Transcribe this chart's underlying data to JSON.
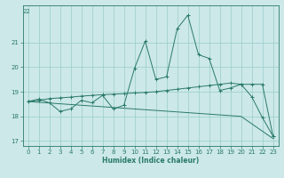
{
  "xlabel": "Humidex (Indice chaleur)",
  "x": [
    0,
    1,
    2,
    3,
    4,
    5,
    6,
    7,
    8,
    9,
    10,
    11,
    12,
    13,
    14,
    15,
    16,
    17,
    18,
    19,
    20,
    21,
    22,
    23
  ],
  "line1": [
    18.6,
    18.7,
    18.55,
    18.2,
    18.3,
    18.65,
    18.55,
    18.85,
    18.3,
    18.45,
    19.95,
    21.05,
    19.5,
    19.6,
    21.55,
    22.1,
    20.5,
    20.35,
    19.05,
    19.15,
    19.3,
    18.8,
    17.95,
    17.2
  ],
  "line2": [
    18.6,
    18.65,
    18.72,
    18.75,
    18.78,
    18.82,
    18.85,
    18.88,
    18.9,
    18.92,
    18.95,
    18.97,
    19.0,
    19.05,
    19.1,
    19.15,
    19.2,
    19.25,
    19.3,
    19.35,
    19.3,
    19.3,
    19.3,
    17.2
  ],
  "line3": [
    18.6,
    18.57,
    18.54,
    18.51,
    18.48,
    18.45,
    18.42,
    18.39,
    18.36,
    18.33,
    18.3,
    18.27,
    18.24,
    18.21,
    18.18,
    18.15,
    18.12,
    18.09,
    18.06,
    18.03,
    18.0,
    17.7,
    17.4,
    17.1
  ],
  "line_color": "#2a7a6a",
  "bg_color": "#cce8e8",
  "grid_color": "#99cccc",
  "ylim": [
    16.8,
    22.5
  ],
  "yticks": [
    17,
    18,
    19,
    20,
    21
  ],
  "xticks": [
    0,
    1,
    2,
    3,
    4,
    5,
    6,
    7,
    8,
    9,
    10,
    11,
    12,
    13,
    14,
    15,
    16,
    17,
    18,
    19,
    20,
    21,
    22,
    23
  ],
  "top_label": "22"
}
